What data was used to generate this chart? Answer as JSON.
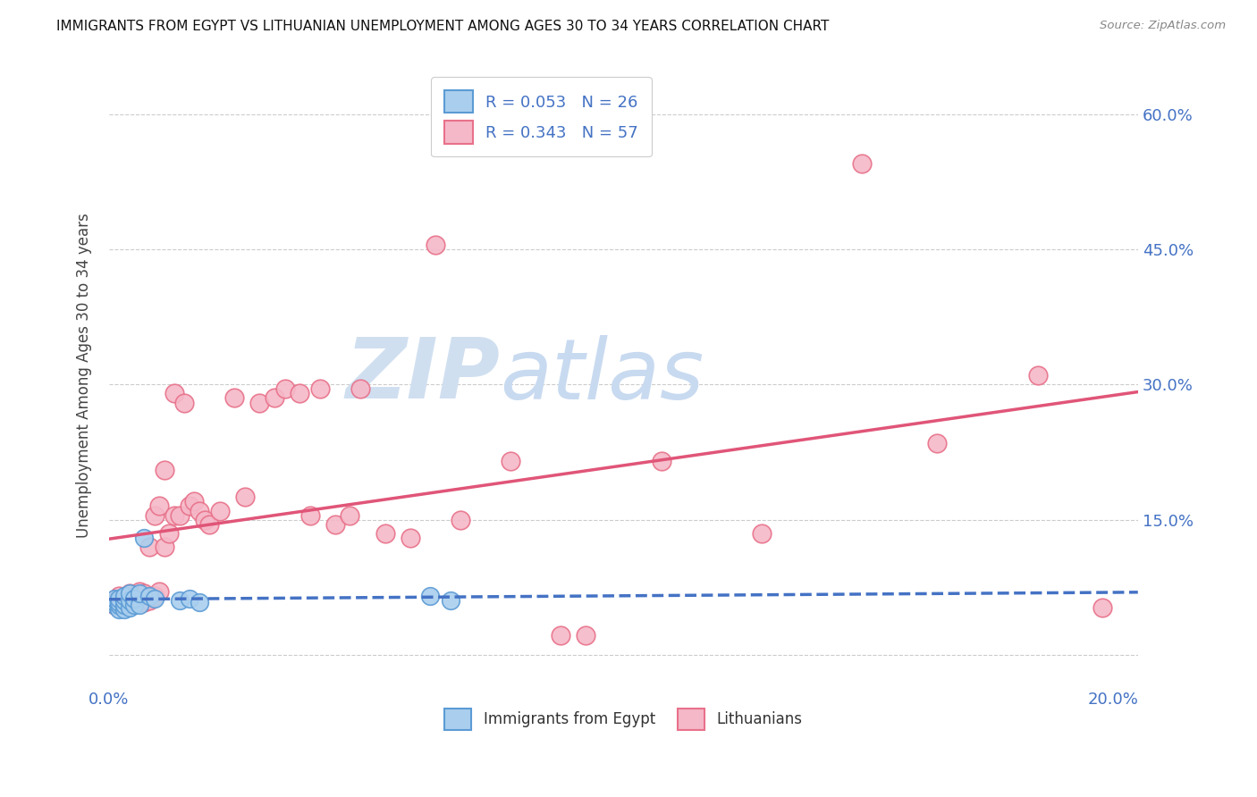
{
  "title": "IMMIGRANTS FROM EGYPT VS LITHUANIAN UNEMPLOYMENT AMONG AGES 30 TO 34 YEARS CORRELATION CHART",
  "source": "Source: ZipAtlas.com",
  "ylabel": "Unemployment Among Ages 30 to 34 years",
  "xlim": [
    0.0,
    0.205
  ],
  "ylim": [
    -0.03,
    0.65
  ],
  "xticks": [
    0.0,
    0.05,
    0.1,
    0.15,
    0.2
  ],
  "xtick_labels": [
    "0.0%",
    "",
    "",
    "",
    "20.0%"
  ],
  "ytick_positions": [
    0.0,
    0.15,
    0.3,
    0.45,
    0.6
  ],
  "ytick_labels": [
    "",
    "15.0%",
    "30.0%",
    "45.0%",
    "60.0%"
  ],
  "legend_r1": "R = 0.053",
  "legend_n1": "N = 26",
  "legend_r2": "R = 0.343",
  "legend_n2": "N = 57",
  "color_blue_fill": "#aacfee",
  "color_pink_fill": "#f5b8c8",
  "color_blue_edge": "#5b9bd5",
  "color_pink_edge": "#e8718a",
  "color_blue_line": "#4472c4",
  "color_pink_line": "#e05578",
  "color_blue_text": "#4472c4",
  "watermark_zip": "ZIP",
  "watermark_atlas": "atlas",
  "blue_scatter_x": [
    0.001,
    0.001,
    0.001,
    0.002,
    0.002,
    0.002,
    0.002,
    0.003,
    0.003,
    0.003,
    0.003,
    0.004,
    0.004,
    0.004,
    0.005,
    0.005,
    0.006,
    0.006,
    0.007,
    0.008,
    0.009,
    0.014,
    0.016,
    0.018,
    0.064,
    0.068
  ],
  "blue_scatter_y": [
    0.055,
    0.058,
    0.062,
    0.05,
    0.055,
    0.058,
    0.062,
    0.05,
    0.055,
    0.06,
    0.065,
    0.052,
    0.06,
    0.068,
    0.055,
    0.062,
    0.055,
    0.068,
    0.13,
    0.065,
    0.062,
    0.06,
    0.062,
    0.058,
    0.065,
    0.06
  ],
  "pink_scatter_x": [
    0.001,
    0.001,
    0.002,
    0.002,
    0.003,
    0.003,
    0.004,
    0.004,
    0.005,
    0.005,
    0.006,
    0.006,
    0.007,
    0.007,
    0.008,
    0.008,
    0.009,
    0.009,
    0.01,
    0.01,
    0.011,
    0.011,
    0.012,
    0.013,
    0.013,
    0.014,
    0.015,
    0.016,
    0.017,
    0.018,
    0.019,
    0.02,
    0.022,
    0.025,
    0.027,
    0.03,
    0.033,
    0.035,
    0.038,
    0.04,
    0.042,
    0.045,
    0.048,
    0.05,
    0.055,
    0.06,
    0.065,
    0.07,
    0.08,
    0.09,
    0.095,
    0.11,
    0.13,
    0.15,
    0.165,
    0.185,
    0.198
  ],
  "pink_scatter_y": [
    0.055,
    0.06,
    0.058,
    0.065,
    0.055,
    0.062,
    0.06,
    0.068,
    0.058,
    0.065,
    0.062,
    0.07,
    0.058,
    0.068,
    0.06,
    0.12,
    0.065,
    0.155,
    0.07,
    0.165,
    0.12,
    0.205,
    0.135,
    0.29,
    0.155,
    0.155,
    0.28,
    0.165,
    0.17,
    0.16,
    0.15,
    0.145,
    0.16,
    0.285,
    0.175,
    0.28,
    0.285,
    0.295,
    0.29,
    0.155,
    0.295,
    0.145,
    0.155,
    0.295,
    0.135,
    0.13,
    0.455,
    0.15,
    0.215,
    0.022,
    0.022,
    0.215,
    0.135,
    0.545,
    0.235,
    0.31,
    0.052
  ]
}
